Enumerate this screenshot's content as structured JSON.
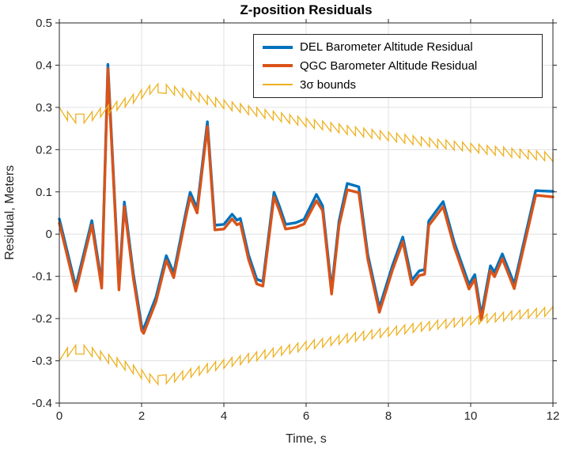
{
  "chart_data": {
    "type": "line",
    "title": "Z-position Residuals",
    "xlabel": "Time, s",
    "ylabel": "Residual, Meters",
    "xlim": [
      0,
      12
    ],
    "ylim": [
      -0.4,
      0.5
    ],
    "xticks": [
      0,
      2,
      4,
      6,
      8,
      10,
      12
    ],
    "xtick_labels": [
      "0",
      "2",
      "4",
      "6",
      "8",
      "10",
      "12"
    ],
    "yticks": [
      0.5,
      0.4,
      0.3,
      0.2,
      0.1,
      0,
      -0.1,
      -0.2,
      -0.3,
      -0.4
    ],
    "ytick_labels": [
      "0.5",
      "0.4",
      "0.3",
      "0.2",
      "0.1",
      "0",
      "-0.1",
      "-0.2",
      "-0.3",
      "-0.4"
    ],
    "grid": true,
    "legend_position": "top-right",
    "series": [
      {
        "name": "DEL Barometer Altitude Residual",
        "color": "#0072BD",
        "line_width": 3.4,
        "t": [
          0.0,
          0.4,
          0.79,
          1.03,
          1.18,
          1.45,
          1.58,
          1.8,
          2.0,
          2.05,
          2.35,
          2.6,
          2.78,
          3.08,
          3.18,
          3.35,
          3.6,
          3.78,
          4.0,
          4.2,
          4.32,
          4.4,
          4.6,
          4.8,
          4.95,
          5.22,
          5.35,
          5.5,
          5.75,
          5.95,
          6.25,
          6.4,
          6.62,
          6.8,
          7.0,
          7.28,
          7.5,
          7.78,
          8.1,
          8.35,
          8.57,
          8.75,
          8.88,
          8.98,
          9.33,
          9.6,
          9.96,
          10.1,
          10.26,
          10.48,
          10.58,
          10.77,
          11.06,
          11.58,
          11.78,
          12.0
        ],
        "values": [
          0.036,
          -0.124,
          0.032,
          -0.117,
          0.402,
          -0.121,
          0.076,
          -0.094,
          -0.217,
          -0.224,
          -0.149,
          -0.051,
          -0.092,
          0.054,
          0.099,
          0.061,
          0.266,
          0.021,
          0.023,
          0.047,
          0.033,
          0.037,
          -0.049,
          -0.107,
          -0.112,
          0.099,
          0.066,
          0.023,
          0.027,
          0.035,
          0.094,
          0.067,
          -0.131,
          0.031,
          0.12,
          0.112,
          -0.049,
          -0.174,
          -0.074,
          -0.007,
          -0.109,
          -0.087,
          -0.084,
          0.031,
          0.077,
          -0.019,
          -0.119,
          -0.096,
          -0.192,
          -0.075,
          -0.09,
          -0.047,
          -0.118,
          0.103,
          0.102,
          0.101
        ]
      },
      {
        "name": "QGC Barometer Altitude Residual",
        "color": "#D95319",
        "line_width": 3.4,
        "t": [
          0.0,
          0.4,
          0.79,
          1.03,
          1.18,
          1.45,
          1.58,
          1.8,
          2.0,
          2.05,
          2.35,
          2.6,
          2.78,
          3.08,
          3.18,
          3.35,
          3.6,
          3.78,
          4.0,
          4.2,
          4.32,
          4.4,
          4.6,
          4.8,
          4.95,
          5.22,
          5.35,
          5.5,
          5.75,
          5.95,
          6.25,
          6.4,
          6.62,
          6.8,
          7.0,
          7.28,
          7.5,
          7.78,
          8.1,
          8.35,
          8.57,
          8.75,
          8.88,
          8.98,
          9.33,
          9.6,
          9.96,
          10.1,
          10.26,
          10.48,
          10.58,
          10.77,
          11.06,
          11.58,
          11.78,
          12.0
        ],
        "values": [
          0.026,
          -0.135,
          0.022,
          -0.128,
          0.392,
          -0.132,
          0.065,
          -0.105,
          -0.228,
          -0.235,
          -0.16,
          -0.062,
          -0.103,
          0.043,
          0.088,
          0.05,
          0.255,
          0.01,
          0.012,
          0.036,
          0.022,
          0.026,
          -0.06,
          -0.118,
          -0.123,
          0.088,
          0.055,
          0.012,
          0.016,
          0.024,
          0.079,
          0.056,
          -0.142,
          0.02,
          0.105,
          0.098,
          -0.06,
          -0.185,
          -0.085,
          -0.018,
          -0.12,
          -0.098,
          -0.095,
          0.02,
          0.065,
          -0.03,
          -0.13,
          -0.107,
          -0.204,
          -0.086,
          -0.101,
          -0.058,
          -0.129,
          0.092,
          0.09,
          0.088
        ]
      }
    ],
    "bounds": {
      "name": "3σ bounds",
      "color": "#EDB120",
      "line_width": 1.3,
      "t_start": 0,
      "sample_period": 0.2,
      "sawtooth_amplitude": 0.021,
      "upper_envelope": [
        0.3,
        0.29,
        0.284,
        0.284,
        0.29,
        0.298,
        0.306,
        0.314,
        0.322,
        0.331,
        0.342,
        0.352,
        0.356,
        0.354,
        0.35,
        0.345,
        0.339,
        0.334,
        0.328,
        0.323,
        0.318,
        0.313,
        0.309,
        0.304,
        0.3,
        0.295,
        0.291,
        0.287,
        0.283,
        0.279,
        0.275,
        0.271,
        0.268,
        0.264,
        0.261,
        0.257,
        0.254,
        0.251,
        0.248,
        0.245,
        0.242,
        0.239,
        0.236,
        0.233,
        0.23,
        0.228,
        0.225,
        0.223,
        0.22,
        0.218,
        0.215,
        0.213,
        0.21,
        0.208,
        0.206,
        0.203,
        0.201,
        0.199,
        0.197,
        0.195,
        0.193
      ],
      "lower_envelope": [
        -0.3,
        -0.29,
        -0.284,
        -0.284,
        -0.29,
        -0.298,
        -0.306,
        -0.314,
        -0.322,
        -0.331,
        -0.342,
        -0.352,
        -0.356,
        -0.354,
        -0.35,
        -0.345,
        -0.339,
        -0.334,
        -0.328,
        -0.323,
        -0.318,
        -0.313,
        -0.309,
        -0.304,
        -0.3,
        -0.295,
        -0.291,
        -0.287,
        -0.283,
        -0.279,
        -0.275,
        -0.271,
        -0.268,
        -0.264,
        -0.261,
        -0.257,
        -0.254,
        -0.251,
        -0.248,
        -0.245,
        -0.242,
        -0.239,
        -0.236,
        -0.233,
        -0.23,
        -0.228,
        -0.225,
        -0.223,
        -0.22,
        -0.218,
        -0.215,
        -0.213,
        -0.21,
        -0.208,
        -0.206,
        -0.203,
        -0.201,
        -0.199,
        -0.197,
        -0.195,
        -0.193
      ]
    }
  },
  "legend": {
    "entries": [
      {
        "label": "DEL Barometer Altitude Residual",
        "color": "#0072BD",
        "sample_thickness": 4
      },
      {
        "label": "QGC Barometer Altitude Residual",
        "color": "#D95319",
        "sample_thickness": 4
      },
      {
        "label": "3σ bounds",
        "color": "#EDB120",
        "sample_thickness": 2
      }
    ]
  },
  "style": {
    "axis_color": "#262626",
    "grid_color": "#e0e0e0",
    "tick_label_color": "#262626",
    "background": "#ffffff"
  }
}
